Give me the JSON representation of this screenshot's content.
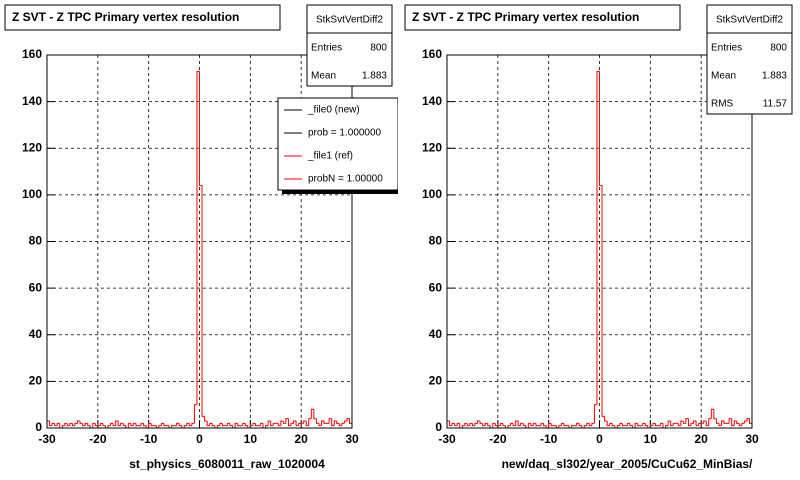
{
  "chart_data": [
    {
      "type": "histogram",
      "title": "Z SVT - Z TPC Primary vertex resolution",
      "xlabel": "st_physics_6080011_raw_1020004",
      "stats": {
        "name": "StkSvtVertDiff2",
        "rows": [
          [
            "Entries",
            800
          ],
          [
            "Mean",
            1.883
          ]
        ]
      },
      "legend": [
        {
          "label": "_file0 (new)",
          "color": "#000000"
        },
        {
          "label": "prob = 1.000000",
          "color": "#000000"
        },
        {
          "label": "_file1 (ref)",
          "color": "#ff0000"
        },
        {
          "label": "probN = 1.00000",
          "color": "#ff0000"
        }
      ],
      "color": "#ff0000",
      "grid": true,
      "xlim": [
        -30,
        30
      ],
      "xticks": [
        -30,
        -20,
        -10,
        0,
        10,
        20,
        30
      ],
      "ylim": [
        0,
        160
      ],
      "yticks": [
        0,
        20,
        40,
        60,
        80,
        100,
        120,
        140,
        160
      ],
      "bins": [
        -30,
        -29.5,
        -29,
        -28.5,
        -28,
        -27.5,
        -27,
        -26.5,
        -26,
        -25.5,
        -25,
        -24.5,
        -24,
        -23.5,
        -23,
        -22.5,
        -22,
        -21.5,
        -21,
        -20.5,
        -20,
        -19.5,
        -19,
        -18.5,
        -18,
        -17.5,
        -17,
        -16.5,
        -16,
        -15.5,
        -15,
        -14.5,
        -14,
        -13.5,
        -13,
        -12.5,
        -12,
        -11.5,
        -11,
        -10.5,
        -10,
        -9.5,
        -9,
        -8.5,
        -8,
        -7.5,
        -7,
        -6.5,
        -6,
        -5.5,
        -5,
        -4.5,
        -4,
        -3.5,
        -3,
        -2.5,
        -2,
        -1.5,
        -1,
        -0.5,
        0,
        0.5,
        1,
        1.5,
        2,
        2.5,
        3,
        3.5,
        4,
        4.5,
        5,
        5.5,
        6,
        6.5,
        7,
        7.5,
        8,
        8.5,
        9,
        9.5,
        10,
        10.5,
        11,
        11.5,
        12,
        12.5,
        13,
        13.5,
        14,
        14.5,
        15,
        15.5,
        16,
        16.5,
        17,
        17.5,
        18,
        18.5,
        19,
        19.5,
        20,
        20.5,
        21,
        21.5,
        22,
        22.5,
        23,
        23.5,
        24,
        24.5,
        25,
        25.5,
        26,
        26.5,
        27,
        27.5,
        28,
        28.5,
        29,
        29.5,
        30
      ],
      "values": [
        3,
        1,
        2,
        1,
        2,
        0,
        1,
        2,
        1,
        2,
        1,
        2,
        3,
        2,
        1,
        2,
        1,
        0,
        2,
        1,
        1,
        2,
        1,
        0,
        1,
        2,
        1,
        3,
        1,
        2,
        1,
        0,
        2,
        1,
        2,
        1,
        1,
        2,
        1,
        0,
        2,
        1,
        1,
        0,
        1,
        2,
        1,
        1,
        0,
        1,
        1,
        2,
        1,
        0,
        1,
        2,
        1,
        2,
        10,
        153,
        104,
        5,
        3,
        1,
        2,
        1,
        0,
        1,
        2,
        1,
        1,
        2,
        1,
        0,
        2,
        1,
        1,
        2,
        1,
        0,
        1,
        2,
        1,
        1,
        2,
        0,
        1,
        3,
        1,
        2,
        2,
        1,
        3,
        2,
        4,
        1,
        2,
        3,
        1,
        2,
        2,
        3,
        1,
        4,
        8,
        4,
        2,
        1,
        3,
        2,
        2,
        4,
        1,
        3,
        2,
        1,
        2,
        3,
        4,
        2
      ]
    },
    {
      "type": "histogram",
      "title": "Z SVT - Z TPC Primary vertex resolution",
      "xlabel": "new/daq_sl302/year_2005/CuCu62_MinBias/",
      "stats": {
        "name": "StkSvtVertDiff2",
        "rows": [
          [
            "Entries",
            800
          ],
          [
            "Mean",
            1.883
          ],
          [
            "RMS",
            11.57
          ]
        ]
      },
      "color": "#ff0000",
      "grid": true,
      "xlim": [
        -30,
        30
      ],
      "xticks": [
        -30,
        -20,
        -10,
        0,
        10,
        20,
        30
      ],
      "ylim": [
        0,
        160
      ],
      "yticks": [
        0,
        20,
        40,
        60,
        80,
        100,
        120,
        140,
        160
      ],
      "bins": [
        -30,
        -29.5,
        -29,
        -28.5,
        -28,
        -27.5,
        -27,
        -26.5,
        -26,
        -25.5,
        -25,
        -24.5,
        -24,
        -23.5,
        -23,
        -22.5,
        -22,
        -21.5,
        -21,
        -20.5,
        -20,
        -19.5,
        -19,
        -18.5,
        -18,
        -17.5,
        -17,
        -16.5,
        -16,
        -15.5,
        -15,
        -14.5,
        -14,
        -13.5,
        -13,
        -12.5,
        -12,
        -11.5,
        -11,
        -10.5,
        -10,
        -9.5,
        -9,
        -8.5,
        -8,
        -7.5,
        -7,
        -6.5,
        -6,
        -5.5,
        -5,
        -4.5,
        -4,
        -3.5,
        -3,
        -2.5,
        -2,
        -1.5,
        -1,
        -0.5,
        0,
        0.5,
        1,
        1.5,
        2,
        2.5,
        3,
        3.5,
        4,
        4.5,
        5,
        5.5,
        6,
        6.5,
        7,
        7.5,
        8,
        8.5,
        9,
        9.5,
        10,
        10.5,
        11,
        11.5,
        12,
        12.5,
        13,
        13.5,
        14,
        14.5,
        15,
        15.5,
        16,
        16.5,
        17,
        17.5,
        18,
        18.5,
        19,
        19.5,
        20,
        20.5,
        21,
        21.5,
        22,
        22.5,
        23,
        23.5,
        24,
        24.5,
        25,
        25.5,
        26,
        26.5,
        27,
        27.5,
        28,
        28.5,
        29,
        29.5,
        30
      ],
      "values": [
        3,
        1,
        2,
        1,
        2,
        0,
        1,
        2,
        1,
        2,
        1,
        2,
        3,
        2,
        1,
        2,
        1,
        0,
        2,
        1,
        1,
        2,
        1,
        0,
        1,
        2,
        1,
        3,
        1,
        2,
        1,
        0,
        2,
        1,
        2,
        1,
        1,
        2,
        1,
        0,
        2,
        1,
        1,
        0,
        1,
        2,
        1,
        1,
        0,
        1,
        1,
        2,
        1,
        0,
        1,
        2,
        1,
        2,
        10,
        153,
        104,
        5,
        3,
        1,
        2,
        1,
        0,
        1,
        2,
        1,
        1,
        2,
        1,
        0,
        2,
        1,
        1,
        2,
        1,
        0,
        1,
        2,
        1,
        1,
        2,
        0,
        1,
        3,
        1,
        2,
        2,
        1,
        3,
        2,
        4,
        1,
        2,
        3,
        1,
        2,
        2,
        3,
        1,
        4,
        8,
        4,
        2,
        1,
        3,
        2,
        2,
        4,
        1,
        3,
        2,
        1,
        2,
        3,
        4,
        2
      ]
    }
  ]
}
